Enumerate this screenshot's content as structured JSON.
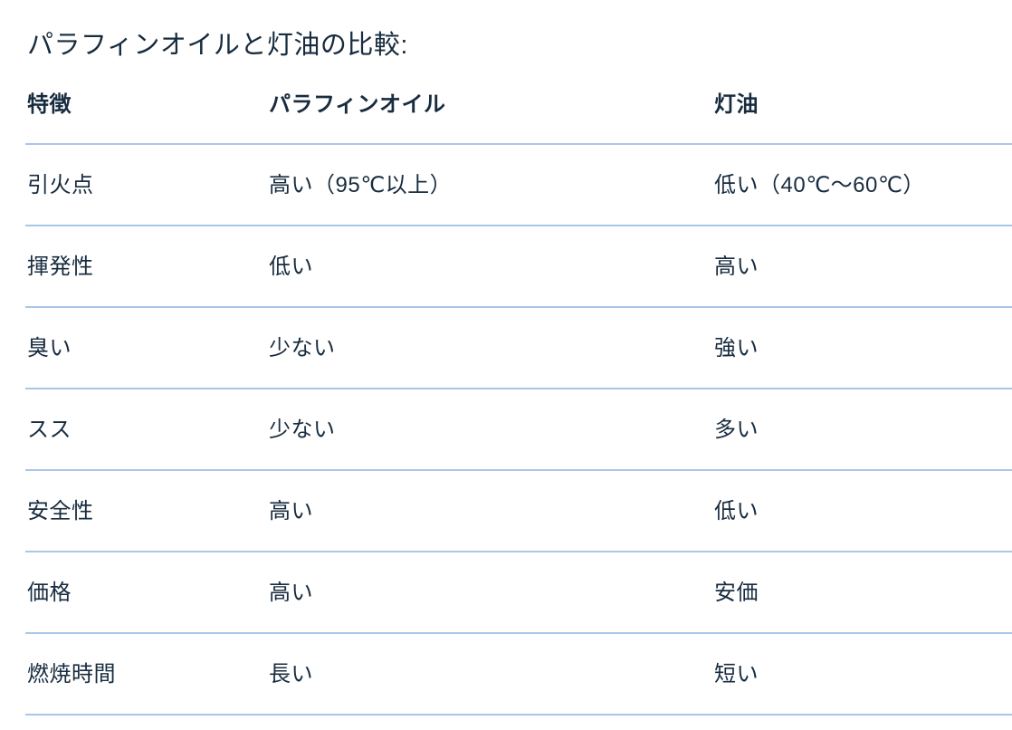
{
  "page": {
    "title": "パラフィンオイルと灯油の比較:"
  },
  "table": {
    "columns": [
      "特徴",
      "パラフィンオイル",
      "灯油"
    ],
    "rows": [
      [
        "引火点",
        "高い（95℃以上）",
        "低い（40℃〜60℃）"
      ],
      [
        "揮発性",
        "低い",
        "高い"
      ],
      [
        "臭い",
        "少ない",
        "強い"
      ],
      [
        "スス",
        "少ない",
        "多い"
      ],
      [
        "安全性",
        "高い",
        "低い"
      ],
      [
        "価格",
        "高い",
        "安価"
      ],
      [
        "燃焼時間",
        "長い",
        "短い"
      ]
    ]
  },
  "colors": {
    "text": "#182c3f",
    "divider": "#a9c6e8",
    "background": "#ffffff"
  }
}
